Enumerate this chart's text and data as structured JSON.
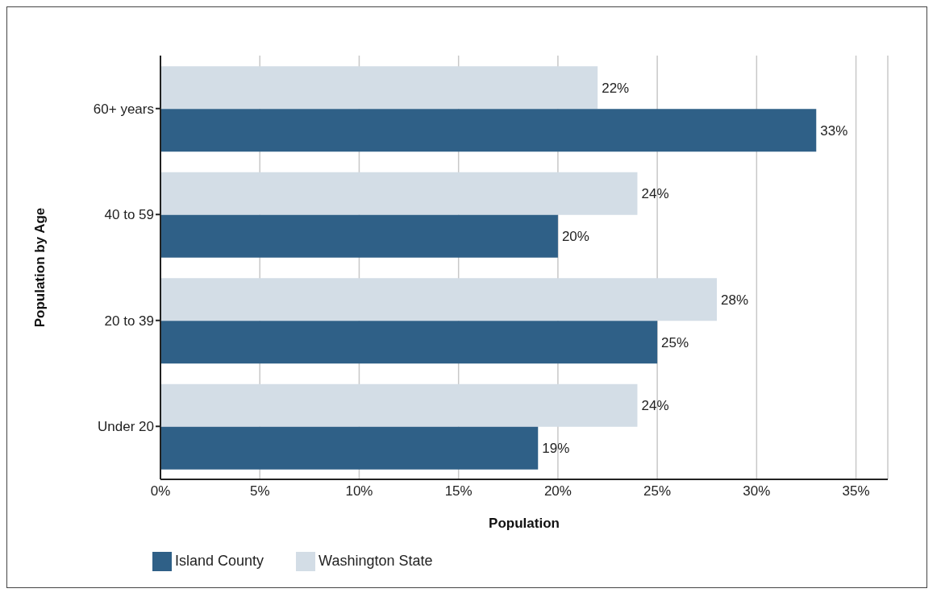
{
  "chart_data": {
    "type": "bar",
    "orientation": "horizontal",
    "xlabel": "Population",
    "ylabel": "Population by Age",
    "categories": [
      "60+ years",
      "40 to 59",
      "20 to 39",
      "Under 20"
    ],
    "series": [
      {
        "name": "Washington State",
        "color": "#d3dde6",
        "values": [
          22,
          24,
          28,
          24
        ],
        "value_labels": [
          "22%",
          "24%",
          "28%",
          "24%"
        ]
      },
      {
        "name": "Island County",
        "color": "#2f6087",
        "values": [
          33,
          20,
          25,
          19
        ],
        "value_labels": [
          "33%",
          "20%",
          "25%",
          "19%"
        ]
      }
    ],
    "xlim": [
      0,
      36.6
    ],
    "xticks": [
      {
        "value": 0,
        "label": "0%"
      },
      {
        "value": 5,
        "label": "5%"
      },
      {
        "value": 10,
        "label": "10%"
      },
      {
        "value": 15,
        "label": "15%"
      },
      {
        "value": 20,
        "label": "20%"
      },
      {
        "value": 25,
        "label": "25%"
      },
      {
        "value": 30,
        "label": "30%"
      },
      {
        "value": 35,
        "label": "35%"
      }
    ],
    "grid": "x",
    "legend": "bottom left"
  }
}
